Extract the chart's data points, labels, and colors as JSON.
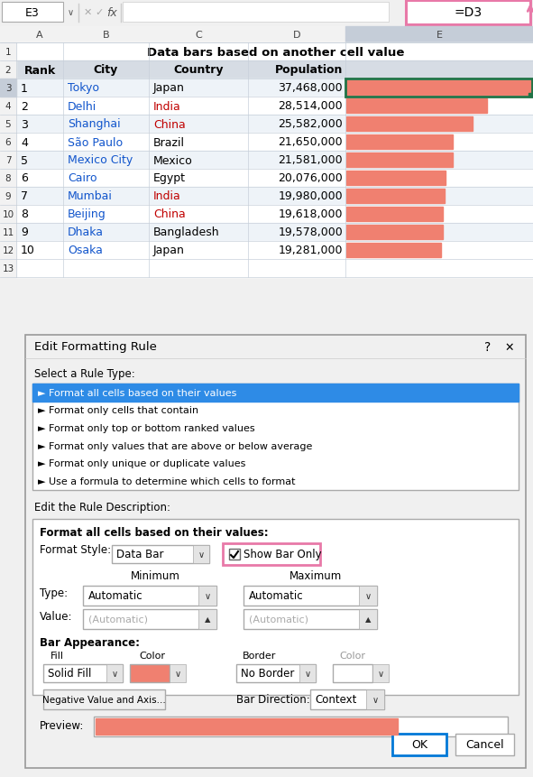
{
  "title": "Data bars based on another cell value",
  "formula_bar_cell": "E3",
  "formula_bar_formula": "=D3",
  "headers": [
    "Rank",
    "City",
    "Country",
    "Population"
  ],
  "rows": [
    [
      1,
      "Tokyo",
      "Japan",
      "37,468,000"
    ],
    [
      2,
      "Delhi",
      "India",
      "28,514,000"
    ],
    [
      3,
      "Shanghai",
      "China",
      "25,582,000"
    ],
    [
      4,
      "São Paulo",
      "Brazil",
      "21,650,000"
    ],
    [
      5,
      "Mexico City",
      "Mexico",
      "21,581,000"
    ],
    [
      6,
      "Cairo",
      "Egypt",
      "20,076,000"
    ],
    [
      7,
      "Mumbai",
      "India",
      "19,980,000"
    ],
    [
      8,
      "Beijing",
      "China",
      "19,618,000"
    ],
    [
      9,
      "Dhaka",
      "Bangladesh",
      "19,578,000"
    ],
    [
      10,
      "Osaka",
      "Japan",
      "19,281,000"
    ]
  ],
  "populations": [
    37468000,
    28514000,
    25582000,
    21650000,
    21581000,
    20076000,
    19980000,
    19618000,
    19578000,
    19281000
  ],
  "bar_color": "#F08070",
  "col_header_bg": "#D6DCE4",
  "row_alt_bg": "#EEF3F8",
  "row_norm_bg": "#FFFFFF",
  "grid_color": "#C8D0DA",
  "gutter_bg": "#F2F2F2",
  "gutter_highlight": "#C5CDD8",
  "dialog_bg": "#F0F0F0",
  "dialog_title": "Edit Formatting Rule",
  "selected_rule_bg": "#2E8BE6",
  "rule_options": [
    "► Format all cells based on their values",
    "► Format only cells that contain",
    "► Format only top or bottom ranked values",
    "► Format only values that are above or below average",
    "► Format only unique or duplicate values",
    "► Use a formula to determine which cells to format"
  ],
  "pink": "#E879A8",
  "green_border": "#217346",
  "blue_ok": "#0078D7",
  "city_color": "#1155CC",
  "india_color": "#C00000",
  "china_color": "#C00000",
  "brazil_color": "#000000",
  "country_colors": [
    "#000000",
    "#C00000",
    "#C00000",
    "#000000",
    "#000000",
    "#000000",
    "#C00000",
    "#C00000",
    "#000000",
    "#000000"
  ]
}
